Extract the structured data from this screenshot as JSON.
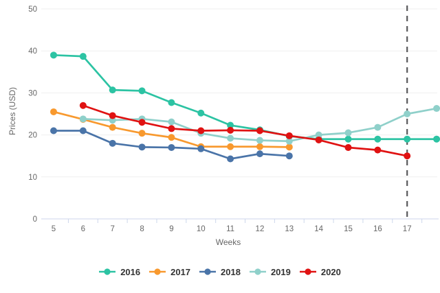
{
  "chart_data": {
    "type": "line",
    "title": "",
    "xlabel": "Weeks",
    "ylabel": "Prices (USD)",
    "grid": true,
    "legend_position": "bottom",
    "x_axis": {
      "title": "Weeks",
      "categories": [
        5,
        6,
        7,
        8,
        9,
        10,
        11,
        12,
        13,
        14,
        15,
        16,
        17
      ]
    },
    "y_axis": {
      "title": "Prices (USD)",
      "ticks": [
        0,
        10,
        20,
        30,
        40,
        50
      ],
      "ylim": [
        0,
        50
      ]
    },
    "annotation": {
      "type": "vertical-dashed-line",
      "x": 17,
      "color": "#58585a"
    },
    "series": [
      {
        "name": "2016",
        "color": "#2cc3a3",
        "points": [
          [
            5,
            39
          ],
          [
            6,
            38.7
          ],
          [
            7,
            30.7
          ],
          [
            8,
            30.5
          ],
          [
            9,
            27.7
          ],
          [
            10,
            25.2
          ],
          [
            11,
            22.3
          ],
          [
            12,
            21.2
          ],
          [
            13,
            19.7
          ],
          [
            14,
            19
          ],
          [
            15,
            19
          ],
          [
            16,
            19
          ],
          [
            17,
            19
          ],
          [
            18,
            19
          ]
        ]
      },
      {
        "name": "2017",
        "color": "#f8992e",
        "points": [
          [
            5,
            25.5
          ],
          [
            6,
            23.7
          ],
          [
            7,
            21.8
          ],
          [
            8,
            20.4
          ],
          [
            9,
            19.4
          ],
          [
            10,
            17.2
          ],
          [
            11,
            17.2
          ],
          [
            12,
            17.2
          ],
          [
            13,
            17.1
          ]
        ]
      },
      {
        "name": "2018",
        "color": "#4a74a8",
        "points": [
          [
            5,
            21
          ],
          [
            6,
            21
          ],
          [
            7,
            18
          ],
          [
            8,
            17.1
          ],
          [
            9,
            17
          ],
          [
            10,
            16.7
          ],
          [
            11,
            14.3
          ],
          [
            12,
            15.5
          ],
          [
            13,
            15
          ]
        ]
      },
      {
        "name": "2019",
        "color": "#8fd0ca",
        "points": [
          [
            6,
            23.8
          ],
          [
            7,
            23.5
          ],
          [
            8,
            23.8
          ],
          [
            9,
            23.1
          ],
          [
            10,
            20.4
          ],
          [
            11,
            19.2
          ],
          [
            12,
            18.7
          ],
          [
            13,
            18.5
          ],
          [
            14,
            20
          ],
          [
            15,
            20.5
          ],
          [
            16,
            21.8
          ],
          [
            17,
            25
          ],
          [
            18,
            26.3
          ]
        ]
      },
      {
        "name": "2020",
        "color": "#e01212",
        "points": [
          [
            6,
            27
          ],
          [
            7,
            24.6
          ],
          [
            8,
            23
          ],
          [
            9,
            21.5
          ],
          [
            10,
            21
          ],
          [
            11,
            21.1
          ],
          [
            12,
            21
          ],
          [
            13,
            19.8
          ],
          [
            14,
            18.8
          ],
          [
            15,
            17
          ],
          [
            16,
            16.4
          ],
          [
            17,
            15
          ]
        ]
      }
    ],
    "colors": {
      "gridline": "#efefef",
      "axis_line": "#ccd6eb",
      "tick": "#ccd6eb",
      "axis_label": "#666666",
      "legend_text": "#333333",
      "dashed_line": "#58585a"
    }
  }
}
